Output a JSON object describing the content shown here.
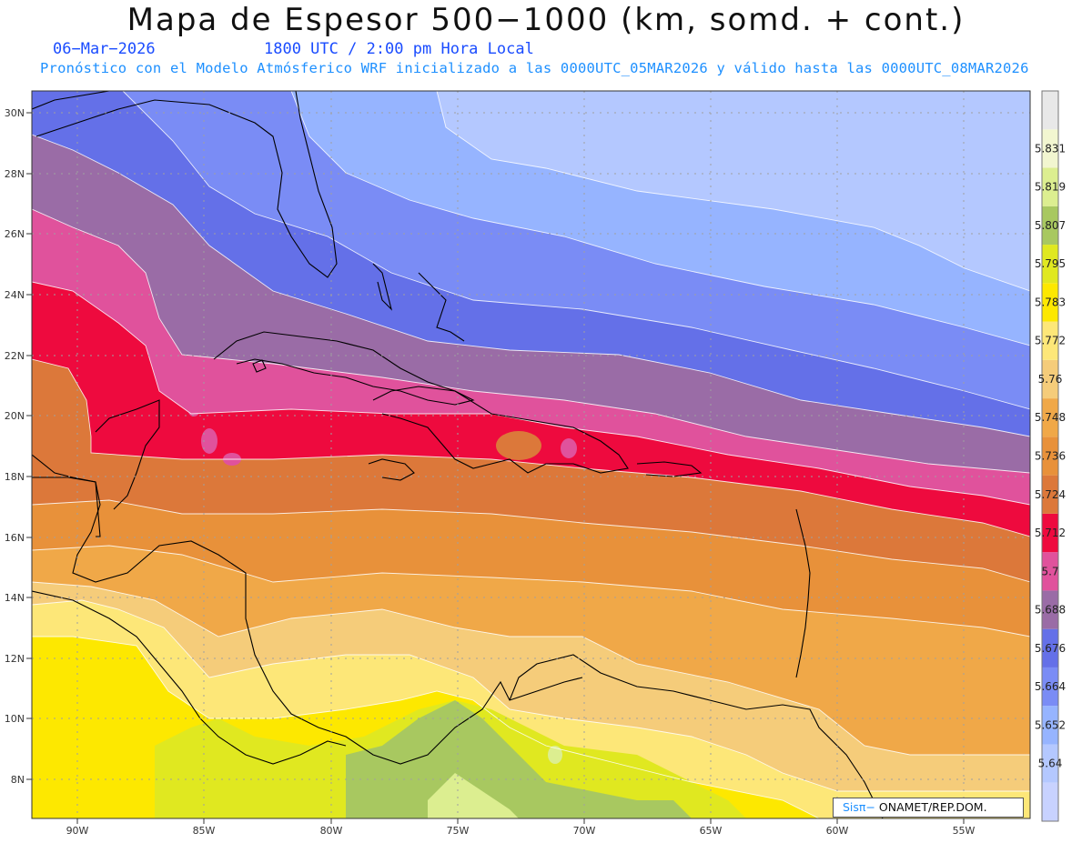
{
  "header": {
    "title": "Mapa de Espesor 500−1000 (km, somd. + cont.)",
    "date": "06−Mar−2026",
    "time": "1800 UTC / 2:00 pm Hora Local",
    "subtitle": "Pronóstico con el Modelo Atmósferico WRF inicializado a las 0000UTC_05MAR2026 y válido hasta las  0000UTC_08MAR2026"
  },
  "map": {
    "lon_labels": [
      "90W",
      "85W",
      "80W",
      "75W",
      "70W",
      "65W",
      "60W",
      "55W"
    ],
    "lat_labels": [
      "8N",
      "10N",
      "12N",
      "14N",
      "16N",
      "18N",
      "20N",
      "22N",
      "24N",
      "26N",
      "28N",
      "30N"
    ]
  },
  "colorbar": {
    "levels": [
      {
        "label": "",
        "color": "#c8d2ff"
      },
      {
        "label": "5.64",
        "color": "#b4c8ff"
      },
      {
        "label": "5.652",
        "color": "#96b4ff"
      },
      {
        "label": "5.664",
        "color": "#7a8cf5"
      },
      {
        "label": "5.676",
        "color": "#6470e8"
      },
      {
        "label": "5.688",
        "color": "#9a6ca6"
      },
      {
        "label": "5.7",
        "color": "#e0529c"
      },
      {
        "label": "5.712",
        "color": "#ee0a3e"
      },
      {
        "label": "5.724",
        "color": "#dc783a"
      },
      {
        "label": "5.736",
        "color": "#e8913a"
      },
      {
        "label": "5.748",
        "color": "#f0a848"
      },
      {
        "label": "5.76",
        "color": "#f5cc7a"
      },
      {
        "label": "5.772",
        "color": "#fde778"
      },
      {
        "label": "5.783",
        "color": "#fde800"
      },
      {
        "label": "5.795",
        "color": "#e0e820"
      },
      {
        "label": "5.807",
        "color": "#a8c860"
      },
      {
        "label": "5.819",
        "color": "#dcee90"
      },
      {
        "label": "5.831",
        "color": "#f2f6d0"
      },
      {
        "label": "",
        "color": "#e8e8e8"
      }
    ]
  },
  "credit": {
    "brand": "Sisπ−",
    "org": "ONAMET/REP.DOM."
  }
}
